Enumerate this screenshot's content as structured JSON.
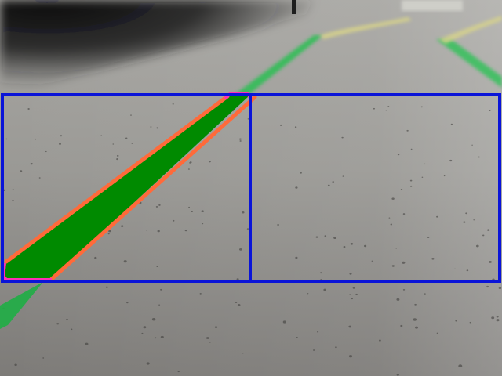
{
  "scene": {
    "description_tag": "camera-frame-lane-detection",
    "colors": {
      "floor_light": "#a7a6a2",
      "floor_mid": "#8e8c88",
      "floor_dark": "#6f6e6b",
      "shadow": "#0a0a0c",
      "tape_green": "#1fae45",
      "tape_green_bright": "#3fd36a",
      "tape_yellow": "#d8d48a",
      "lane_fill": "#008a00",
      "lane_outline": "#ff6a3a",
      "lane_corner_marker": "#ff2fb4",
      "roi_box": "#0a14d8"
    },
    "regions": {
      "left_roi": {
        "name": "left-region-of-interest"
      },
      "right_roi": {
        "name": "right-region-of-interest"
      }
    }
  }
}
